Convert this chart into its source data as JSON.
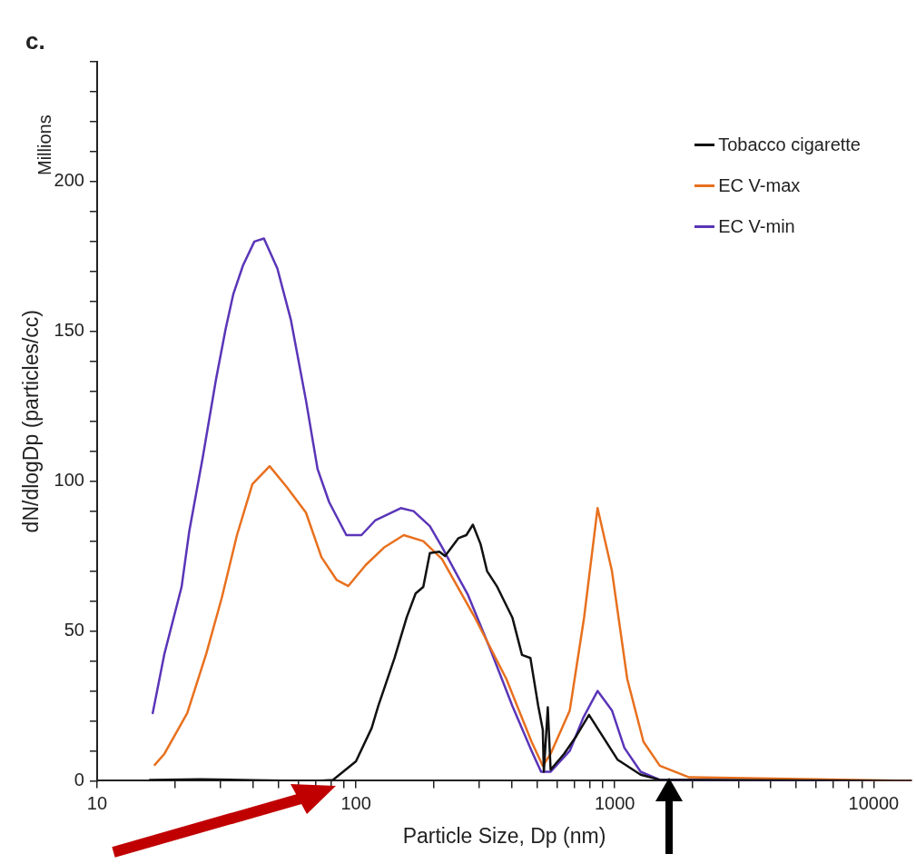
{
  "chart_data": {
    "type": "line",
    "xlabel": "Particle Size, Dp (nm)",
    "ylabel": "dN/dlogDp (particles/cc)",
    "annotations": [
      "c.",
      "Millions"
    ],
    "log": "x",
    "grid": false,
    "legend": "top right",
    "marker": "none",
    "line_style": "solid",
    "xlim": [
      10,
      14000
    ],
    "ylim": [
      0,
      240
    ],
    "xticks": [
      10,
      {
        "value": 20,
        "label": null
      },
      {
        "value": 30,
        "label": null
      },
      {
        "value": 40,
        "label": null
      },
      {
        "value": 50,
        "label": null
      },
      {
        "value": 60,
        "label": null
      },
      {
        "value": 70,
        "label": null
      },
      {
        "value": 80,
        "label": null
      },
      {
        "value": 90,
        "label": null
      },
      100,
      {
        "value": 200,
        "label": null
      },
      {
        "value": 300,
        "label": null
      },
      {
        "value": 400,
        "label": null
      },
      {
        "value": 500,
        "label": null
      },
      {
        "value": 600,
        "label": null
      },
      {
        "value": 700,
        "label": null
      },
      {
        "value": 800,
        "label": null
      },
      {
        "value": 900,
        "label": null
      },
      1000,
      {
        "value": 2000,
        "label": null
      },
      {
        "value": 3000,
        "label": null
      },
      {
        "value": 4000,
        "label": null
      },
      {
        "value": 5000,
        "label": null
      },
      {
        "value": 6000,
        "label": null
      },
      {
        "value": 7000,
        "label": null
      },
      {
        "value": 8000,
        "label": null
      },
      {
        "value": 9000,
        "label": null
      },
      10000
    ],
    "yticks": [
      0,
      {
        "value": 10,
        "label": null
      },
      {
        "value": 20,
        "label": null
      },
      {
        "value": 30,
        "label": null
      },
      {
        "value": 40,
        "label": null
      },
      50,
      {
        "value": 60,
        "label": null
      },
      {
        "value": 70,
        "label": null
      },
      {
        "value": 80,
        "label": null
      },
      {
        "value": 90,
        "label": null
      },
      100,
      {
        "value": 110,
        "label": null
      },
      {
        "value": 120,
        "label": null
      },
      {
        "value": 130,
        "label": null
      },
      {
        "value": 140,
        "label": null
      },
      150,
      {
        "value": 160,
        "label": null
      },
      {
        "value": 170,
        "label": null
      },
      {
        "value": 180,
        "label": null
      },
      {
        "value": 190,
        "label": null
      },
      200,
      {
        "value": 210,
        "label": null
      },
      {
        "value": 220,
        "label": null
      },
      {
        "value": 230,
        "label": null
      },
      {
        "value": 240,
        "label": null
      }
    ],
    "series": [
      {
        "name": "Tobacco cigarette",
        "color": "#111111",
        "x": [
          16,
          25,
          40,
          60,
          71,
          81.5,
          100,
          115,
          122,
          141,
          157,
          170,
          182,
          193,
          210,
          221,
          249,
          267,
          283,
          303,
          321,
          350,
          402,
          438,
          472,
          506,
          527,
          532,
          551,
          565,
          637,
          711,
          795,
          895,
          1026,
          1259,
          1493,
          13930
        ],
        "values": [
          0.3,
          0.5,
          0.2,
          0,
          0,
          0.3,
          6.5,
          17.6,
          25,
          41,
          54.5,
          62.5,
          64.7,
          76,
          76.5,
          75,
          81,
          82,
          85.5,
          79,
          70,
          65,
          54.5,
          42,
          41,
          25,
          17,
          3,
          24.5,
          3.7,
          9,
          15,
          22,
          15,
          7,
          2,
          0.3,
          0
        ]
      },
      {
        "name": "EC V-max",
        "color": "#e8701e",
        "x": [
          16.7,
          18.2,
          22.3,
          26.4,
          30.3,
          34.7,
          39.8,
          46.4,
          54.1,
          64.1,
          73.6,
          84.3,
          93.4,
          109,
          129,
          153,
          182,
          215,
          286,
          381,
          477,
          527,
          565,
          670,
          761,
          858,
          975,
          1117,
          1291,
          1493,
          1928,
          13930
        ],
        "values": [
          5.3,
          9,
          22.6,
          42.4,
          61,
          82,
          99,
          105,
          98,
          89.5,
          74.6,
          67,
          65,
          72,
          78,
          82,
          80,
          74,
          55,
          34,
          13,
          5,
          9,
          23.5,
          54.5,
          91,
          70,
          34,
          13,
          5,
          1.2,
          0
        ]
      },
      {
        "name": "EC V-min",
        "color": "#5a35b8",
        "x": [
          16.4,
          18.2,
          21.2,
          22.7,
          25.6,
          28.8,
          31.4,
          33.6,
          36.6,
          40.5,
          44.1,
          49.7,
          56,
          64.1,
          71.1,
          78.8,
          91.8,
          105,
          119,
          149,
          167,
          193,
          215,
          271,
          330,
          402,
          477,
          519,
          565,
          670,
          755,
          858,
          975,
          1089,
          1259,
          1493,
          13930
        ],
        "values": [
          22.6,
          42.4,
          64.7,
          83.3,
          108,
          134,
          151,
          162.5,
          172,
          180,
          181,
          171,
          154,
          127,
          104,
          93,
          82,
          82,
          87,
          91,
          90,
          85,
          78,
          62,
          44,
          25,
          10,
          3,
          3,
          10,
          21,
          30,
          23.5,
          11,
          3,
          0.3,
          0
        ]
      }
    ]
  }
}
